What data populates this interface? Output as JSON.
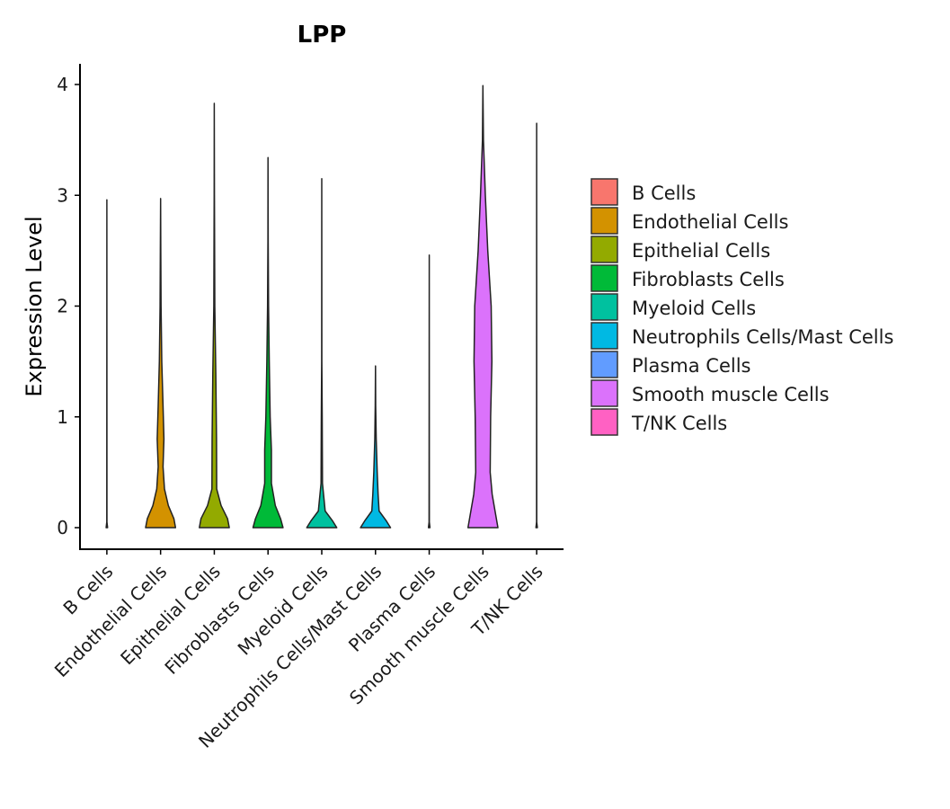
{
  "chart_data": {
    "type": "violin",
    "title": "LPP",
    "xlabel": "",
    "ylabel": "Expression Level",
    "ylim": [
      -0.2,
      4.2
    ],
    "yticks": [
      0,
      1,
      2,
      3,
      4
    ],
    "yticklabels": [
      "0",
      "1",
      "2",
      "3",
      "4"
    ],
    "categories": [
      "B Cells",
      "Endothelial Cells",
      "Epithelial Cells",
      "Fibroblasts Cells",
      "Myeloid Cells",
      "Neutrophils Cells/Mast Cells",
      "Plasma Cells",
      "Smooth muscle Cells",
      "T/NK Cells"
    ],
    "colors": [
      "#F8766D",
      "#D39200",
      "#93AA00",
      "#00BA38",
      "#00C19F",
      "#00B9E3",
      "#619CFF",
      "#DB72FB",
      "#FF61C3"
    ],
    "legend_title": "",
    "legend_position": "right",
    "series": [
      {
        "name": "B Cells",
        "max": 2.96,
        "density": [
          [
            0,
            0.03
          ],
          [
            0.05,
            0.005
          ],
          [
            2.96,
            0
          ]
        ]
      },
      {
        "name": "Endothelial Cells",
        "max": 2.97,
        "density": [
          [
            0,
            0.62
          ],
          [
            0.08,
            0.55
          ],
          [
            0.2,
            0.32
          ],
          [
            0.35,
            0.16
          ],
          [
            0.55,
            0.1
          ],
          [
            0.8,
            0.14
          ],
          [
            1.1,
            0.1
          ],
          [
            1.5,
            0.05
          ],
          [
            2.0,
            0.02
          ],
          [
            2.5,
            0.01
          ],
          [
            2.97,
            0
          ]
        ]
      },
      {
        "name": "Epithelial Cells",
        "max": 3.83,
        "density": [
          [
            0,
            0.62
          ],
          [
            0.08,
            0.55
          ],
          [
            0.2,
            0.28
          ],
          [
            0.35,
            0.1
          ],
          [
            0.8,
            0.09
          ],
          [
            1.4,
            0.06
          ],
          [
            2.0,
            0.02
          ],
          [
            3.0,
            0.005
          ],
          [
            3.83,
            0
          ]
        ]
      },
      {
        "name": "Fibroblasts Cells",
        "max": 3.34,
        "density": [
          [
            0,
            0.62
          ],
          [
            0.08,
            0.52
          ],
          [
            0.2,
            0.3
          ],
          [
            0.4,
            0.14
          ],
          [
            0.7,
            0.14
          ],
          [
            1.0,
            0.09
          ],
          [
            1.5,
            0.05
          ],
          [
            2.0,
            0.02
          ],
          [
            2.6,
            0.005
          ],
          [
            3.34,
            0
          ]
        ]
      },
      {
        "name": "Myeloid Cells",
        "max": 3.15,
        "density": [
          [
            0,
            0.62
          ],
          [
            0.06,
            0.45
          ],
          [
            0.15,
            0.14
          ],
          [
            0.4,
            0.03
          ],
          [
            1.0,
            0.02
          ],
          [
            1.5,
            0.005
          ],
          [
            3.15,
            0
          ]
        ]
      },
      {
        "name": "Neutrophils Cells/Mast Cells",
        "max": 1.46,
        "density": [
          [
            0,
            0.62
          ],
          [
            0.06,
            0.45
          ],
          [
            0.15,
            0.15
          ],
          [
            0.3,
            0.11
          ],
          [
            0.5,
            0.07
          ],
          [
            0.8,
            0.03
          ],
          [
            1.1,
            0.01
          ],
          [
            1.46,
            0
          ]
        ]
      },
      {
        "name": "Plasma Cells",
        "max": 2.46,
        "density": [
          [
            0,
            0.03
          ],
          [
            0.05,
            0.005
          ],
          [
            2.46,
            0
          ]
        ]
      },
      {
        "name": "Smooth muscle Cells",
        "max": 3.99,
        "density": [
          [
            0,
            0.62
          ],
          [
            0.15,
            0.5
          ],
          [
            0.3,
            0.38
          ],
          [
            0.5,
            0.3
          ],
          [
            1.0,
            0.32
          ],
          [
            1.5,
            0.37
          ],
          [
            2.0,
            0.34
          ],
          [
            2.5,
            0.2
          ],
          [
            3.0,
            0.1
          ],
          [
            3.5,
            0.02
          ],
          [
            3.99,
            0
          ]
        ]
      },
      {
        "name": "T/NK Cells",
        "max": 3.65,
        "density": [
          [
            0,
            0.03
          ],
          [
            0.05,
            0.005
          ],
          [
            3.65,
            0
          ]
        ]
      }
    ]
  }
}
